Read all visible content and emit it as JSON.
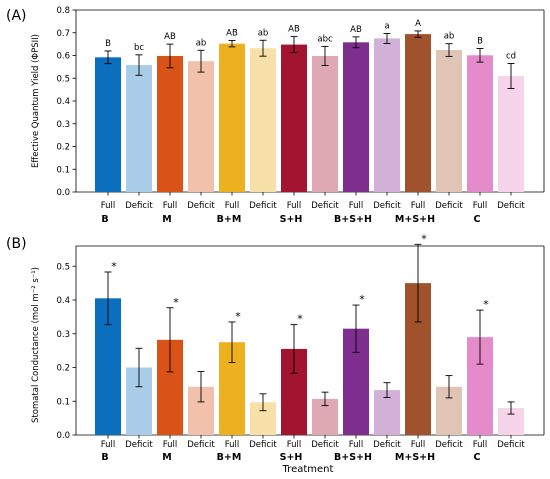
{
  "chart_data": [
    {
      "type": "bar",
      "panel_label": "(A)",
      "ylabel": "Effective Quantum Yield (ΦPSII)",
      "ylim": [
        0,
        0.8
      ],
      "yticks": [
        "0.0",
        "0.1",
        "0.2",
        "0.3",
        "0.4",
        "0.5",
        "0.6",
        "0.7",
        "0.8"
      ],
      "groups": [
        "B",
        "M",
        "B+M",
        "S+H",
        "B+S+H",
        "M+S+H",
        "C"
      ],
      "bars": [
        {
          "group": "B",
          "treatment": "Full",
          "value": 0.592,
          "err": 0.028,
          "annotation": "B",
          "color": "#0b6fbd"
        },
        {
          "group": "B",
          "treatment": "Deficit",
          "value": 0.558,
          "err": 0.045,
          "annotation": "bc",
          "color": "#a9cde9"
        },
        {
          "group": "M",
          "treatment": "Full",
          "value": 0.598,
          "err": 0.052,
          "annotation": "AB",
          "color": "#d95319"
        },
        {
          "group": "M",
          "treatment": "Deficit",
          "value": 0.575,
          "err": 0.048,
          "annotation": "ab",
          "color": "#f2c1ac"
        },
        {
          "group": "B+M",
          "treatment": "Full",
          "value": 0.652,
          "err": 0.014,
          "annotation": "AB",
          "color": "#edb120"
        },
        {
          "group": "B+M",
          "treatment": "Deficit",
          "value": 0.632,
          "err": 0.035,
          "annotation": "ab",
          "color": "#f8e1a8"
        },
        {
          "group": "S+H",
          "treatment": "Full",
          "value": 0.648,
          "err": 0.035,
          "annotation": "AB",
          "color": "#a2142f"
        },
        {
          "group": "S+H",
          "treatment": "Deficit",
          "value": 0.598,
          "err": 0.042,
          "annotation": "abc",
          "color": "#dfa9b4"
        },
        {
          "group": "B+S+H",
          "treatment": "Full",
          "value": 0.658,
          "err": 0.024,
          "annotation": "AB",
          "color": "#7e2f8e"
        },
        {
          "group": "B+S+H",
          "treatment": "Deficit",
          "value": 0.675,
          "err": 0.022,
          "annotation": "a",
          "color": "#d2b1d8"
        },
        {
          "group": "M+S+H",
          "treatment": "Full",
          "value": 0.694,
          "err": 0.014,
          "annotation": "A",
          "color": "#a0522d"
        },
        {
          "group": "M+S+H",
          "treatment": "Deficit",
          "value": 0.624,
          "err": 0.028,
          "annotation": "ab",
          "color": "#e0c5b7"
        },
        {
          "group": "C",
          "treatment": "Full",
          "value": 0.601,
          "err": 0.03,
          "annotation": "B",
          "color": "#e68bc9"
        },
        {
          "group": "C",
          "treatment": "Deficit",
          "value": 0.51,
          "err": 0.055,
          "annotation": "cd",
          "color": "#f6d4ea"
        }
      ]
    },
    {
      "type": "bar",
      "panel_label": "(B)",
      "ylabel": "Stomatal Conductance (mol m⁻² s⁻¹)",
      "xlabel": "Treatment",
      "ylim": [
        0,
        0.56
      ],
      "yticks": [
        "0.0",
        "0.1",
        "0.2",
        "0.3",
        "0.4",
        "0.5"
      ],
      "groups": [
        "B",
        "M",
        "B+M",
        "S+H",
        "B+S+H",
        "M+S+H",
        "C"
      ],
      "bars": [
        {
          "group": "B",
          "treatment": "Full",
          "value": 0.405,
          "err": 0.078,
          "annotation": "*",
          "color": "#0b6fbd"
        },
        {
          "group": "B",
          "treatment": "Deficit",
          "value": 0.2,
          "err": 0.057,
          "annotation": "",
          "color": "#a9cde9"
        },
        {
          "group": "M",
          "treatment": "Full",
          "value": 0.282,
          "err": 0.095,
          "annotation": "*",
          "color": "#d95319"
        },
        {
          "group": "M",
          "treatment": "Deficit",
          "value": 0.143,
          "err": 0.045,
          "annotation": "",
          "color": "#f2c1ac"
        },
        {
          "group": "B+M",
          "treatment": "Full",
          "value": 0.275,
          "err": 0.06,
          "annotation": "*",
          "color": "#edb120"
        },
        {
          "group": "B+M",
          "treatment": "Deficit",
          "value": 0.097,
          "err": 0.025,
          "annotation": "",
          "color": "#f8e1a8"
        },
        {
          "group": "S+H",
          "treatment": "Full",
          "value": 0.255,
          "err": 0.072,
          "annotation": "*",
          "color": "#a2142f"
        },
        {
          "group": "S+H",
          "treatment": "Deficit",
          "value": 0.107,
          "err": 0.02,
          "annotation": "",
          "color": "#dfa9b4"
        },
        {
          "group": "B+S+H",
          "treatment": "Full",
          "value": 0.315,
          "err": 0.07,
          "annotation": "*",
          "color": "#7e2f8e"
        },
        {
          "group": "B+S+H",
          "treatment": "Deficit",
          "value": 0.133,
          "err": 0.022,
          "annotation": "",
          "color": "#d2b1d8"
        },
        {
          "group": "M+S+H",
          "treatment": "Full",
          "value": 0.45,
          "err": 0.115,
          "annotation": "*",
          "color": "#a0522d"
        },
        {
          "group": "M+S+H",
          "treatment": "Deficit",
          "value": 0.143,
          "err": 0.033,
          "annotation": "",
          "color": "#e0c5b7"
        },
        {
          "group": "C",
          "treatment": "Full",
          "value": 0.29,
          "err": 0.08,
          "annotation": "*",
          "color": "#e68bc9"
        },
        {
          "group": "C",
          "treatment": "Deficit",
          "value": 0.08,
          "err": 0.018,
          "annotation": "",
          "color": "#f6d4ea"
        }
      ]
    }
  ]
}
